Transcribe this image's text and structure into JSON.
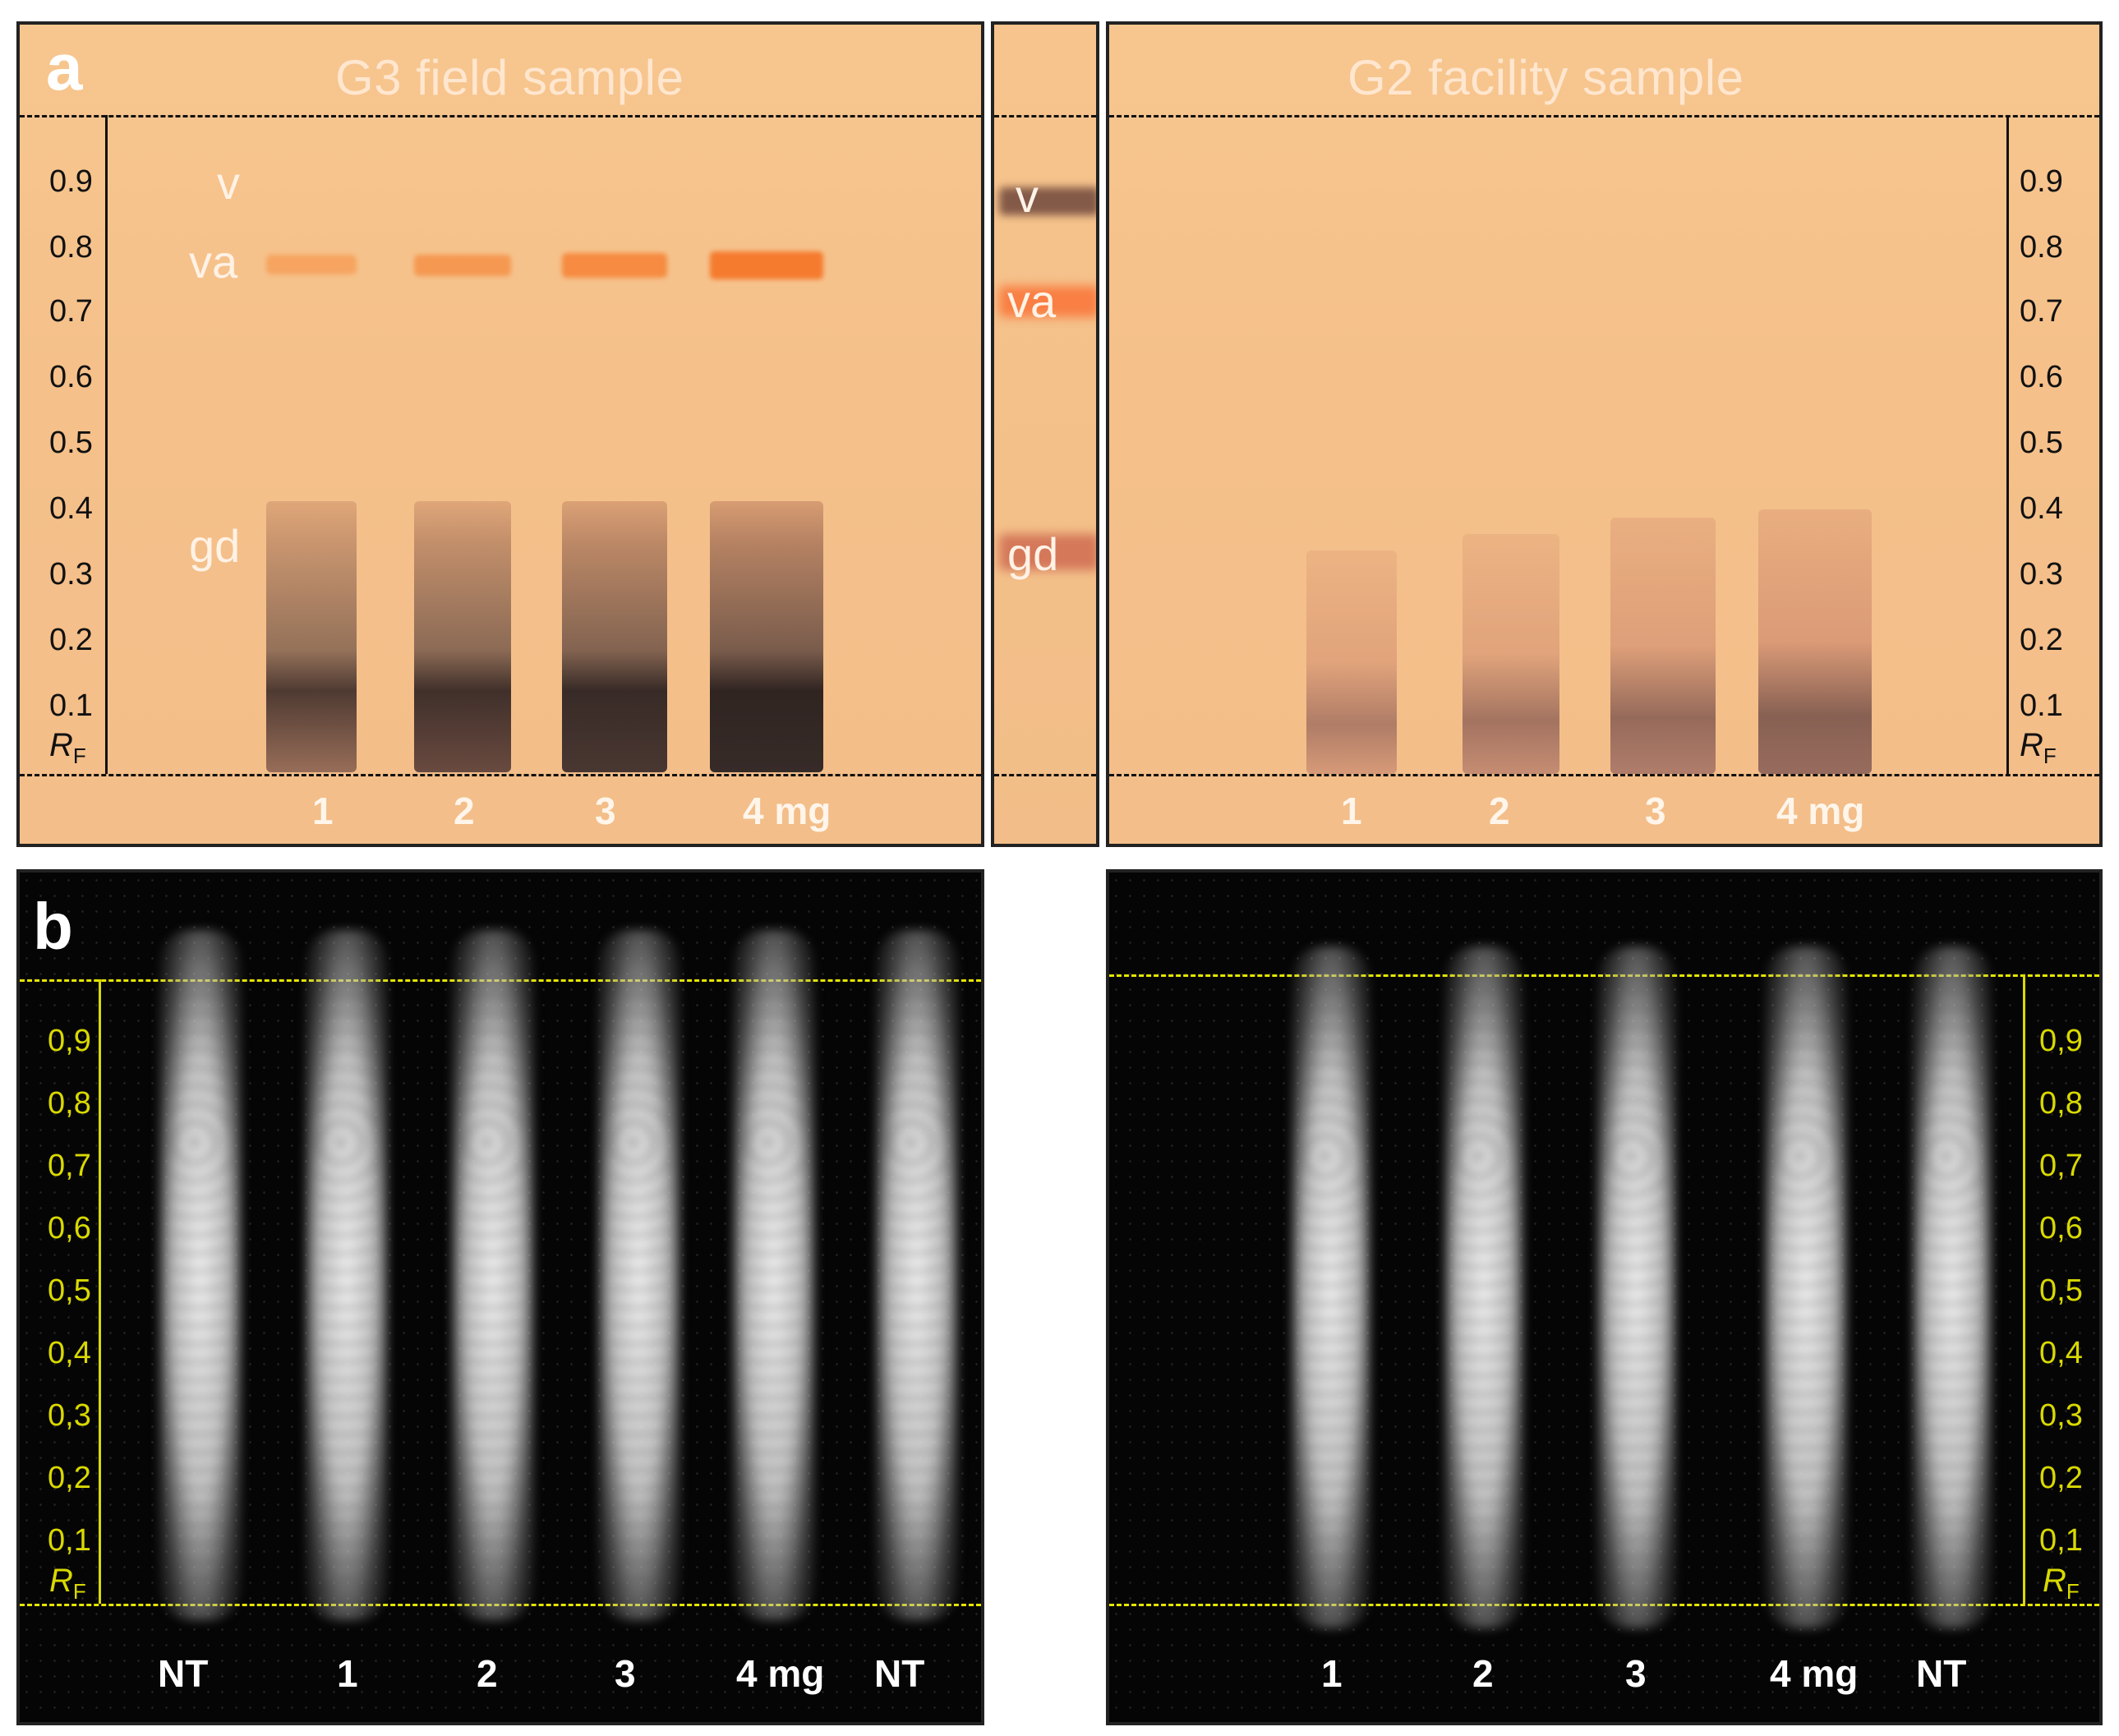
{
  "figure": {
    "panel_a": {
      "label": "a",
      "left_title": "G3 field sample",
      "right_title": "G2 facility sample",
      "axis_ticks": [
        "0.9",
        "0.8",
        "0.7",
        "0.6",
        "0.5",
        "0.4",
        "0.3",
        "0.2",
        "0.1"
      ],
      "rf_label": "R",
      "rf_sub": "F",
      "zones_left": [
        "v",
        "va",
        "gd"
      ],
      "zones_mid": [
        "v",
        "va",
        "gd"
      ],
      "lanes_left": [
        "1",
        "2",
        "3",
        "4 mg"
      ],
      "lanes_right": [
        "1",
        "2",
        "3",
        "4 mg"
      ]
    },
    "panel_b": {
      "label": "b",
      "axis_ticks": [
        "0,9",
        "0,8",
        "0,7",
        "0,6",
        "0,5",
        "0,4",
        "0,3",
        "0,2",
        "0,1"
      ],
      "rf_label": "R",
      "rf_sub": "F",
      "lanes_left": [
        "NT",
        "1",
        "2",
        "3",
        "4 mg",
        "NT"
      ],
      "lanes_right": [
        "1",
        "2",
        "3",
        "4 mg",
        "NT"
      ]
    },
    "colors": {
      "plate": "#f5c18b",
      "dark_bg": "#050505",
      "yellow_axis": "#d9d900",
      "band_dark": "#3a2a2a",
      "band_orange": "#f08a3a"
    }
  }
}
